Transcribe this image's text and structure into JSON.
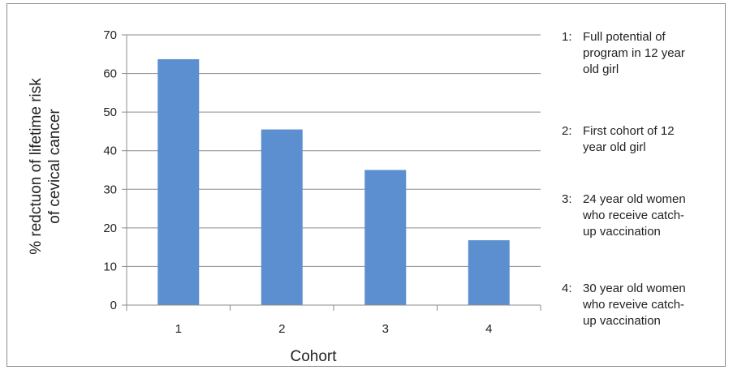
{
  "chart_data": {
    "type": "bar",
    "categories": [
      "1",
      "2",
      "3",
      "4"
    ],
    "values": [
      63.7,
      45.5,
      35.0,
      16.8
    ],
    "ylim": [
      0,
      70
    ],
    "yticks": [
      0,
      10,
      20,
      30,
      40,
      50,
      60,
      70
    ],
    "xlabel": "Cohort",
    "ylabel_lines": [
      "% redctuon of lifetime risk",
      "of cevical cancer"
    ],
    "grid": true,
    "bar_color": "#5b8fd0",
    "legend_position": "right",
    "notes": [
      {
        "num": "1:",
        "lines": [
          "Full potential of",
          "program in 12 year",
          "old girl"
        ]
      },
      {
        "num": "2:",
        "lines": [
          "First cohort of 12",
          "year old girl"
        ]
      },
      {
        "num": "3:",
        "lines": [
          "24 year old women",
          "who receive catch-",
          "up vaccination"
        ]
      },
      {
        "num": "4:",
        "lines": [
          "30 year old women",
          "who reveive catch-",
          "up vaccination"
        ]
      }
    ]
  }
}
